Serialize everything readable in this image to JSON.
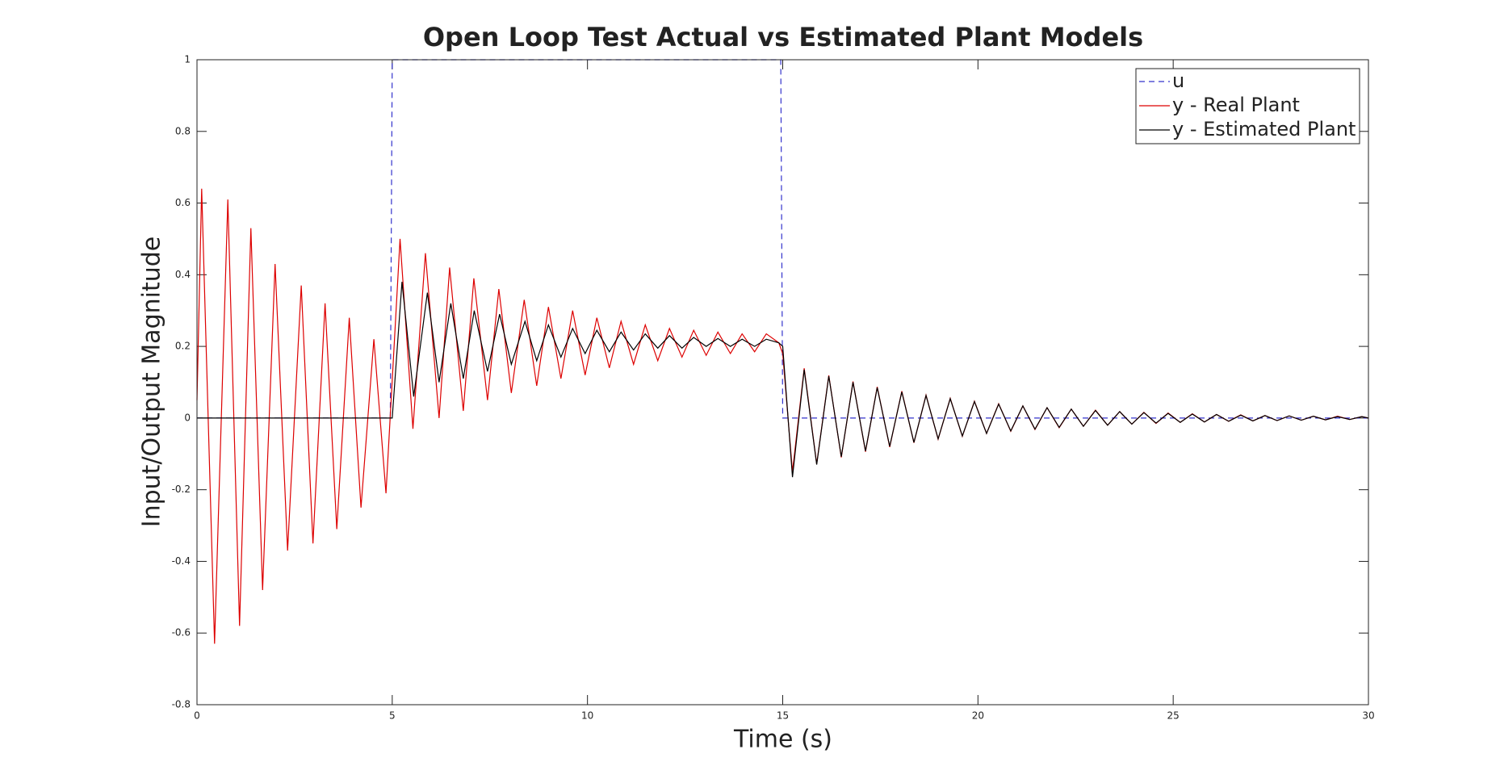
{
  "chart_data": {
    "type": "line",
    "title": "Open Loop Test Actual vs Estimated Plant Models",
    "x_label": "Time (s)",
    "y_label": "Input/Output Magnitude",
    "xlim": [
      0,
      30
    ],
    "xticks": [
      0,
      5,
      10,
      15,
      20,
      25,
      30
    ],
    "ylim": [
      -0.8,
      1
    ],
    "yticks": [
      -0.8,
      -0.6,
      -0.4,
      -0.2,
      0,
      0.2,
      0.4,
      0.6,
      0.8,
      1
    ],
    "grid": false,
    "legend": "upper right",
    "series": [
      {
        "name": "u",
        "color": "#3333cc",
        "style": "dashed",
        "x": [
          0,
          4.95,
          5,
          14.95,
          15,
          30
        ],
        "values": [
          0,
          0,
          1,
          1,
          0,
          0
        ]
      },
      {
        "name": "y - Real Plant",
        "color": "#dd0000",
        "style": "solid",
        "x": [
          0,
          0.12,
          0.45,
          0.79,
          1.09,
          1.38,
          1.68,
          2.0,
          2.32,
          2.67,
          2.97,
          3.28,
          3.58,
          3.9,
          4.2,
          4.53,
          4.84,
          5.2,
          5.53,
          5.85,
          6.2,
          6.47,
          6.82,
          7.09,
          7.44,
          7.73,
          8.05,
          8.38,
          8.7,
          9.0,
          9.32,
          9.62,
          9.94,
          10.24,
          10.56,
          10.86,
          11.18,
          11.48,
          11.8,
          12.1,
          12.42,
          12.72,
          13.04,
          13.34,
          13.66,
          13.96,
          14.28,
          14.58,
          14.9,
          15.0,
          15.25,
          15.55,
          15.87,
          16.18,
          16.5,
          16.8,
          17.12,
          17.42,
          17.74,
          18.05,
          18.36,
          18.67,
          18.98,
          19.29,
          19.6,
          19.91,
          20.22,
          20.53,
          20.84,
          21.15,
          21.46,
          21.77,
          22.08,
          22.39,
          22.7,
          23.01,
          23.32,
          23.63,
          23.94,
          24.25,
          24.56,
          24.87,
          25.18,
          25.49,
          25.8,
          26.11,
          26.42,
          26.73,
          27.04,
          27.35,
          27.66,
          27.97,
          28.28,
          28.59,
          28.9,
          29.21,
          29.52,
          29.83,
          30
        ],
        "values": [
          0.05,
          0.64,
          -0.63,
          0.61,
          -0.58,
          0.53,
          -0.48,
          0.43,
          -0.37,
          0.37,
          -0.35,
          0.32,
          -0.31,
          0.28,
          -0.25,
          0.22,
          -0.21,
          0.5,
          -0.03,
          0.46,
          0.0,
          0.42,
          0.02,
          0.39,
          0.05,
          0.36,
          0.07,
          0.33,
          0.09,
          0.31,
          0.11,
          0.3,
          0.12,
          0.28,
          0.14,
          0.27,
          0.15,
          0.26,
          0.16,
          0.25,
          0.17,
          0.245,
          0.175,
          0.24,
          0.18,
          0.235,
          0.185,
          0.235,
          0.21,
          0.18,
          -0.15,
          0.139,
          -0.128,
          0.119,
          -0.11,
          0.102,
          -0.094,
          0.087,
          -0.081,
          0.075,
          -0.069,
          0.064,
          -0.059,
          0.055,
          -0.051,
          0.047,
          -0.043,
          0.04,
          -0.037,
          0.034,
          -0.032,
          0.029,
          -0.027,
          0.025,
          -0.023,
          0.022,
          -0.02,
          0.018,
          -0.017,
          0.016,
          -0.015,
          0.014,
          -0.012,
          0.012,
          -0.011,
          0.01,
          -0.009,
          0.009,
          -0.008,
          0.007,
          -0.007,
          0.006,
          -0.006,
          0.005,
          -0.005,
          0.005,
          -0.004,
          0.004,
          0
        ]
      },
      {
        "name": "y - Estimated Plant",
        "color": "#000000",
        "style": "solid",
        "x": [
          0,
          5.0,
          5.25,
          5.55,
          5.9,
          6.2,
          6.5,
          6.82,
          7.1,
          7.44,
          7.75,
          8.05,
          8.4,
          8.7,
          9.0,
          9.32,
          9.62,
          9.94,
          10.24,
          10.56,
          10.86,
          11.18,
          11.48,
          11.8,
          12.1,
          12.42,
          12.72,
          13.04,
          13.34,
          13.66,
          13.96,
          14.28,
          14.58,
          14.9,
          15.0,
          15.25,
          15.55,
          15.87,
          16.18,
          16.5,
          16.8,
          17.12,
          17.42,
          17.74,
          18.05,
          18.36,
          18.67,
          18.98,
          19.29,
          19.6,
          19.91,
          20.22,
          20.53,
          20.84,
          21.15,
          21.46,
          21.77,
          22.08,
          22.39,
          22.7,
          23.01,
          23.32,
          23.63,
          23.94,
          24.25,
          24.56,
          24.87,
          25.18,
          25.49,
          25.8,
          26.11,
          26.42,
          26.73,
          27.04,
          27.35,
          27.66,
          27.97,
          28.28,
          28.59,
          28.9,
          29.21,
          29.52,
          29.83,
          30
        ],
        "values": [
          0,
          0,
          0.38,
          0.06,
          0.35,
          0.1,
          0.32,
          0.11,
          0.3,
          0.13,
          0.29,
          0.15,
          0.27,
          0.16,
          0.26,
          0.17,
          0.25,
          0.18,
          0.245,
          0.185,
          0.24,
          0.19,
          0.235,
          0.195,
          0.23,
          0.195,
          0.225,
          0.2,
          0.222,
          0.2,
          0.22,
          0.2,
          0.22,
          0.21,
          0.2,
          -0.165,
          0.135,
          -0.13,
          0.117,
          -0.108,
          0.1,
          -0.092,
          0.085,
          -0.079,
          0.073,
          -0.068,
          0.063,
          -0.058,
          0.054,
          -0.05,
          0.046,
          -0.043,
          0.039,
          -0.036,
          0.034,
          -0.031,
          0.029,
          -0.026,
          0.025,
          -0.023,
          0.021,
          -0.02,
          0.018,
          -0.017,
          0.015,
          -0.014,
          0.013,
          -0.012,
          0.011,
          -0.011,
          0.01,
          -0.009,
          0.008,
          -0.008,
          0.007,
          -0.007,
          0.006,
          -0.006,
          0.005,
          -0.005,
          0.004,
          -0.004,
          0.004,
          0
        ]
      }
    ]
  }
}
